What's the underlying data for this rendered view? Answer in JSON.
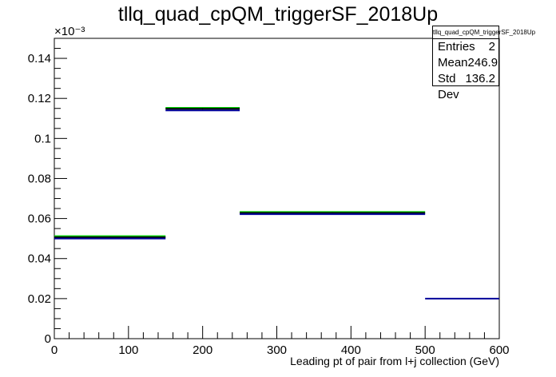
{
  "title": "tllq_quad_cpQM_triggerSF_2018Up",
  "stats": {
    "title": "tllq_quad_cpQM_triggerSF_2018Up",
    "rows": [
      {
        "label": "Entries",
        "value": "2"
      },
      {
        "label": "Mean",
        "value": "246.9"
      },
      {
        "label": "Std Dev",
        "value": "136.2"
      }
    ]
  },
  "chart_data": {
    "type": "histogram",
    "title": "tllq_quad_cpQM_triggerSF_2018Up",
    "xlabel": "Leading pt of pair from l+j collection (GeV)",
    "ylabel": "",
    "y_multiplier": "×10⁻³",
    "xlim": [
      0,
      600
    ],
    "ylim": [
      0,
      0.15
    ],
    "x_ticks": [
      0,
      100,
      200,
      300,
      400,
      500,
      600
    ],
    "y_ticks": [
      0,
      0.02,
      0.04,
      0.06,
      0.08,
      0.1,
      0.12,
      0.14
    ],
    "bin_edges": [
      0,
      150,
      250,
      500,
      600
    ],
    "series": [
      {
        "color": "#00cc00",
        "values": [
          0.0512,
          0.1153,
          0.0633,
          null
        ]
      },
      {
        "color": "#000000",
        "values": [
          0.0506,
          0.1148,
          0.0628,
          null
        ]
      },
      {
        "color": "#000099",
        "values": [
          0.05,
          0.114,
          0.0622,
          0.02
        ]
      }
    ]
  }
}
